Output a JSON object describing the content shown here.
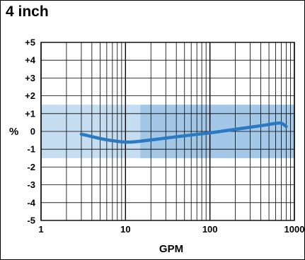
{
  "title": "4 inch",
  "chart_data": {
    "type": "line",
    "title": "4 inch",
    "xlabel": "GPM",
    "ylabel": "%",
    "xscale": "log",
    "xlim": [
      1,
      1000
    ],
    "ylim": [
      -5,
      5
    ],
    "grid": true,
    "x_ticks": [
      "1",
      "10",
      "100",
      "1000"
    ],
    "y_ticks": [
      "+5",
      "+4",
      "+3",
      "+2",
      "+1",
      "0",
      "-1",
      "-2",
      "-3",
      "-4",
      "-5"
    ],
    "bands": [
      {
        "x_from": 1,
        "x_to": 1000,
        "y_from": -1.5,
        "y_to": 1.5,
        "color": "#c5ddf0"
      },
      {
        "x_from": 15,
        "x_to": 1000,
        "y_from": -1.5,
        "y_to": 1.5,
        "color": "#a3c7e6"
      }
    ],
    "series": [
      {
        "color": "#2a79c2",
        "x": [
          3,
          5,
          7,
          10,
          13,
          20,
          40,
          100,
          200,
          400,
          600,
          700,
          800
        ],
        "y": [
          -0.15,
          -0.4,
          -0.52,
          -0.6,
          -0.58,
          -0.48,
          -0.3,
          -0.08,
          0.12,
          0.32,
          0.45,
          0.46,
          0.28
        ]
      }
    ]
  }
}
